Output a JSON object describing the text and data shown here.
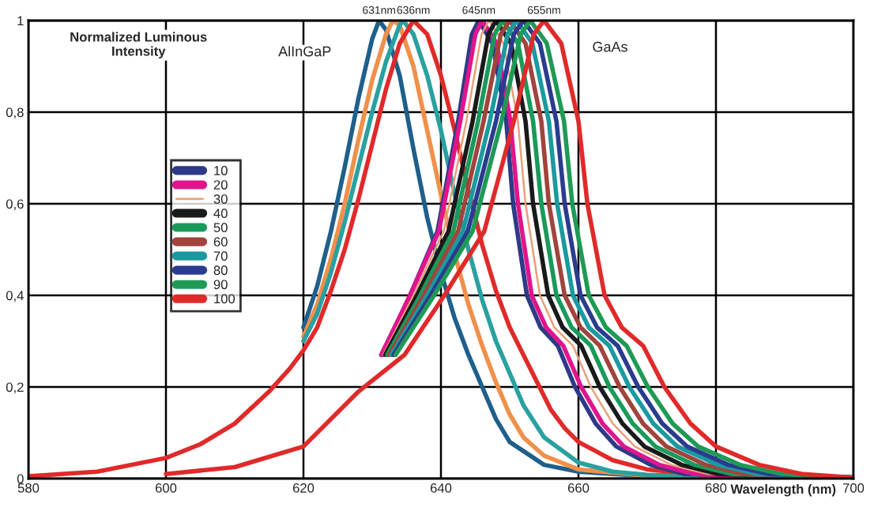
{
  "chart_data": {
    "type": "line",
    "ylabel": "Normalized Luminous\nIntensity",
    "xlabel": "Wavelength (nm)",
    "xlim": [
      580,
      700
    ],
    "xticks": [
      580,
      600,
      620,
      640,
      660,
      680,
      700
    ],
    "ylim": [
      0,
      1
    ],
    "yticks": [
      {
        "value": 0,
        "label": "0"
      },
      {
        "value": 0.2,
        "label": "0,2"
      },
      {
        "value": 0.4,
        "label": "0,4"
      },
      {
        "value": 0.6,
        "label": "0,6"
      },
      {
        "value": 0.8,
        "label": "0,8"
      },
      {
        "value": 1,
        "label": "1"
      }
    ],
    "grid": true,
    "legend": "left",
    "marker": "none",
    "line_style": "solid",
    "annotations": [
      {
        "text": "631nm",
        "x": 631,
        "y": 1
      },
      {
        "text": "636nm",
        "x": 636,
        "y": 1
      },
      {
        "text": "645nm",
        "x": 645.5,
        "y": 1
      },
      {
        "text": "655nm",
        "x": 655,
        "y": 1
      },
      "AlInGaP",
      "GaAs"
    ],
    "series": [
      {
        "color": "#1f5f8b",
        "x": [
          620,
          622,
          624,
          626,
          628,
          630,
          631,
          632,
          634,
          636,
          638,
          640,
          642,
          644,
          646,
          648,
          650,
          655,
          660,
          670,
          700
        ],
        "values": [
          0.33,
          0.42,
          0.54,
          0.68,
          0.83,
          0.96,
          1.0,
          0.98,
          0.88,
          0.72,
          0.57,
          0.45,
          0.35,
          0.27,
          0.2,
          0.13,
          0.08,
          0.03,
          0.015,
          0.005,
          0.002
        ]
      },
      {
        "color": "#f0904a",
        "x": [
          620,
          622,
          624,
          626,
          628,
          630,
          632,
          633,
          634,
          636,
          638,
          640,
          642,
          644,
          646,
          648,
          650,
          652,
          655,
          660,
          670,
          700
        ],
        "values": [
          0.31,
          0.38,
          0.48,
          0.6,
          0.74,
          0.87,
          0.97,
          1.0,
          0.99,
          0.9,
          0.76,
          0.62,
          0.49,
          0.38,
          0.29,
          0.21,
          0.14,
          0.09,
          0.05,
          0.02,
          0.006,
          0.002
        ]
      },
      {
        "color": "#2aa0a0",
        "x": [
          620,
          622,
          624,
          626,
          628,
          630,
          632,
          634,
          634.5,
          636,
          638,
          640,
          642,
          644,
          646,
          648,
          650,
          652,
          655,
          660,
          665,
          670,
          700
        ],
        "values": [
          0.3,
          0.36,
          0.45,
          0.56,
          0.68,
          0.8,
          0.91,
          0.99,
          1.0,
          0.97,
          0.88,
          0.76,
          0.62,
          0.5,
          0.39,
          0.3,
          0.23,
          0.16,
          0.09,
          0.035,
          0.015,
          0.008,
          0.002
        ]
      },
      {
        "color": "#e02a2a",
        "x": [
          580,
          590,
          600,
          605,
          610,
          615,
          618,
          620,
          622,
          624,
          626,
          628,
          630,
          632,
          634,
          636,
          638,
          640,
          642,
          644,
          646,
          648,
          650,
          652,
          654,
          656,
          658,
          660,
          665,
          670,
          680,
          700
        ],
        "values": [
          0.005,
          0.015,
          0.045,
          0.075,
          0.12,
          0.19,
          0.24,
          0.28,
          0.33,
          0.41,
          0.5,
          0.61,
          0.73,
          0.85,
          0.95,
          1.0,
          0.97,
          0.88,
          0.76,
          0.63,
          0.51,
          0.41,
          0.33,
          0.27,
          0.21,
          0.15,
          0.11,
          0.08,
          0.04,
          0.02,
          0.006,
          0.002
        ]
      },
      {
        "name": "10",
        "color": "#2e3a87",
        "x": [
          631.5,
          635.5,
          639.5,
          642.5,
          644.5,
          645.5,
          647.5,
          649.5,
          650.5,
          652.5,
          654.5,
          657,
          659.5,
          662.5,
          665.5,
          670.5,
          675.5,
          700
        ],
        "values": [
          0.27,
          0.4,
          0.54,
          0.78,
          0.97,
          1,
          0.95,
          0.78,
          0.6,
          0.4,
          0.33,
          0.29,
          0.2,
          0.12,
          0.07,
          0.03,
          0.01,
          0.002
        ]
      },
      {
        "name": "20",
        "color": "#e0158c",
        "x": [
          631.3,
          635.5,
          639.7,
          642.8,
          645.0,
          646,
          648.1,
          650.1,
          651.2,
          653.2,
          655.3,
          657.8,
          660.4,
          663.5,
          666.6,
          671.8,
          676.9,
          700
        ],
        "values": [
          0.27,
          0.4,
          0.54,
          0.78,
          0.97,
          1,
          0.95,
          0.78,
          0.6,
          0.4,
          0.33,
          0.29,
          0.2,
          0.12,
          0.07,
          0.03,
          0.01,
          0.002
        ]
      },
      {
        "name": "30",
        "color": "#e8a07a",
        "x": [
          631.6,
          636,
          640.4,
          643.7,
          645.9,
          647,
          649.1,
          651.2,
          652.3,
          654.4,
          656.5,
          659.2,
          661.8,
          665,
          668.2,
          673.5,
          678.8,
          700
        ],
        "values": [
          0.27,
          0.4,
          0.54,
          0.78,
          0.97,
          1,
          0.95,
          0.78,
          0.6,
          0.4,
          0.33,
          0.29,
          0.2,
          0.12,
          0.07,
          0.03,
          0.01,
          0.002
        ]
      },
      {
        "name": "40",
        "color": "#1a1a1a",
        "x": [
          631.9,
          636.5,
          641.1,
          644.6,
          646.9,
          648,
          650.2,
          652.3,
          653.4,
          655.6,
          657.7,
          660.4,
          663.1,
          666.4,
          669.6,
          675,
          680.4,
          700
        ],
        "values": [
          0.27,
          0.4,
          0.54,
          0.78,
          0.97,
          1,
          0.95,
          0.78,
          0.6,
          0.4,
          0.33,
          0.29,
          0.2,
          0.12,
          0.07,
          0.03,
          0.01,
          0.002
        ]
      },
      {
        "name": "50",
        "color": "#1a9a5a",
        "x": [
          632.2,
          637,
          641.8,
          645.4,
          647.8,
          649,
          651.2,
          653.4,
          654.6,
          656.8,
          659,
          661.8,
          664.5,
          667.9,
          671.2,
          676.8,
          682.3,
          700
        ],
        "values": [
          0.27,
          0.4,
          0.54,
          0.78,
          0.97,
          1,
          0.95,
          0.78,
          0.6,
          0.4,
          0.33,
          0.29,
          0.2,
          0.12,
          0.07,
          0.03,
          0.01,
          0.002
        ]
      },
      {
        "name": "60",
        "color": "#a0443c",
        "x": [
          632.5,
          637.5,
          642.5,
          646.2,
          648.7,
          650,
          652.3,
          654.6,
          655.7,
          658,
          660.3,
          663.1,
          666,
          669.4,
          672.8,
          678.5,
          684.2,
          700
        ],
        "values": [
          0.27,
          0.4,
          0.54,
          0.78,
          0.97,
          1,
          0.95,
          0.78,
          0.6,
          0.4,
          0.33,
          0.29,
          0.2,
          0.12,
          0.07,
          0.03,
          0.01,
          0.002
        ]
      },
      {
        "name": "70",
        "color": "#1a9aa0",
        "x": [
          632.8,
          638,
          643.2,
          647.1,
          649.7,
          651,
          653.3,
          655.7,
          656.9,
          659.2,
          661.5,
          664.5,
          667.4,
          670.9,
          674.4,
          680.3,
          686.1,
          700
        ],
        "values": [
          0.27,
          0.4,
          0.54,
          0.78,
          0.97,
          1,
          0.95,
          0.78,
          0.6,
          0.4,
          0.33,
          0.29,
          0.2,
          0.12,
          0.07,
          0.03,
          0.01,
          0.002
        ]
      },
      {
        "name": "80",
        "color": "#2b3b8f",
        "x": [
          633.1,
          638.5,
          643.9,
          648,
          650.6,
          652,
          654.4,
          656.8,
          658,
          660.3,
          662.7,
          665.7,
          668.7,
          672.2,
          675.8,
          681.8,
          687.7,
          700
        ],
        "values": [
          0.27,
          0.4,
          0.54,
          0.78,
          0.97,
          1,
          0.95,
          0.78,
          0.6,
          0.4,
          0.33,
          0.29,
          0.2,
          0.12,
          0.07,
          0.03,
          0.01,
          0.002
        ]
      },
      {
        "name": "90",
        "color": "#1f9a55",
        "x": [
          633.4,
          639,
          644.6,
          648.8,
          651.6,
          653,
          655.4,
          657.9,
          659.1,
          661.5,
          664,
          667,
          670.1,
          673.7,
          677.4,
          683.5,
          689.6,
          700
        ],
        "values": [
          0.27,
          0.4,
          0.54,
          0.78,
          0.97,
          1,
          0.95,
          0.78,
          0.6,
          0.4,
          0.33,
          0.29,
          0.2,
          0.12,
          0.07,
          0.03,
          0.01,
          0.002
        ]
      },
      {
        "name": "100",
        "color": "#e02a2a",
        "x": [
          600,
          610,
          620,
          628,
          634.7,
          640.5,
          646.3,
          650.6,
          653.5,
          655,
          657.5,
          660,
          661.3,
          663.8,
          666.3,
          669.4,
          672.5,
          676.3,
          680,
          686.3,
          692.5,
          700
        ],
        "values": [
          0.01,
          0.025,
          0.07,
          0.19,
          0.27,
          0.4,
          0.54,
          0.78,
          0.97,
          1,
          0.95,
          0.78,
          0.6,
          0.4,
          0.33,
          0.29,
          0.2,
          0.12,
          0.07,
          0.03,
          0.01,
          0.002
        ]
      }
    ]
  }
}
